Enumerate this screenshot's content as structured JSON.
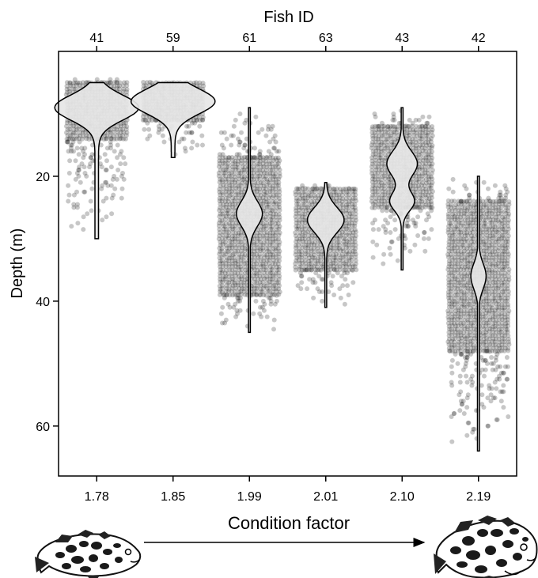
{
  "chart_data": {
    "type": "violin",
    "title": "",
    "top_axis_label": "Fish ID",
    "xlabel": "Condition factor",
    "ylabel": "Depth (m)",
    "y_inverted": true,
    "ylim": [
      0,
      68
    ],
    "yticks": [
      20,
      40,
      60
    ],
    "grid": false,
    "legend": "none",
    "point_color": "#000000",
    "violin_fill": "#e6e6e6",
    "groups": [
      {
        "fish_id": "41",
        "condition_factor": "1.78",
        "depth_min": 5,
        "depth_max": 30,
        "point_min": 4,
        "point_max": 30,
        "dense_min": 5,
        "dense_max": 14,
        "modes": [
          9
        ],
        "peak_depth": 9,
        "max_halfwidth": 0.55
      },
      {
        "fish_id": "59",
        "condition_factor": "1.85",
        "depth_min": 5,
        "depth_max": 17,
        "point_min": 5,
        "point_max": 17,
        "dense_min": 5,
        "dense_max": 11,
        "modes": [
          8
        ],
        "peak_depth": 8,
        "max_halfwidth": 0.55
      },
      {
        "fish_id": "61",
        "condition_factor": "1.99",
        "depth_min": 9,
        "depth_max": 45,
        "point_min": 9,
        "point_max": 45,
        "dense_min": 17,
        "dense_max": 39,
        "modes": [
          26
        ],
        "peak_depth": 26,
        "max_halfwidth": 0.17
      },
      {
        "fish_id": "63",
        "condition_factor": "2.01",
        "depth_min": 21,
        "depth_max": 41,
        "point_min": 21,
        "point_max": 41,
        "dense_min": 22,
        "dense_max": 35,
        "modes": [
          27
        ],
        "peak_depth": 27,
        "max_halfwidth": 0.24
      },
      {
        "fish_id": "43",
        "condition_factor": "2.10",
        "depth_min": 9,
        "depth_max": 35,
        "point_min": 9,
        "point_max": 35,
        "dense_min": 12,
        "dense_max": 25,
        "modes": [
          18,
          24
        ],
        "peak_depth": 18,
        "max_halfwidth": 0.2
      },
      {
        "fish_id": "42",
        "condition_factor": "2.19",
        "depth_min": 20,
        "depth_max": 64,
        "point_min": 20,
        "point_max": 64,
        "dense_min": 24,
        "dense_max": 48,
        "modes": [
          36
        ],
        "peak_depth": 36,
        "max_halfwidth": 0.1
      }
    ]
  },
  "icons": {
    "left": "small-grouper-fish-icon",
    "right": "large-grouper-fish-icon"
  }
}
